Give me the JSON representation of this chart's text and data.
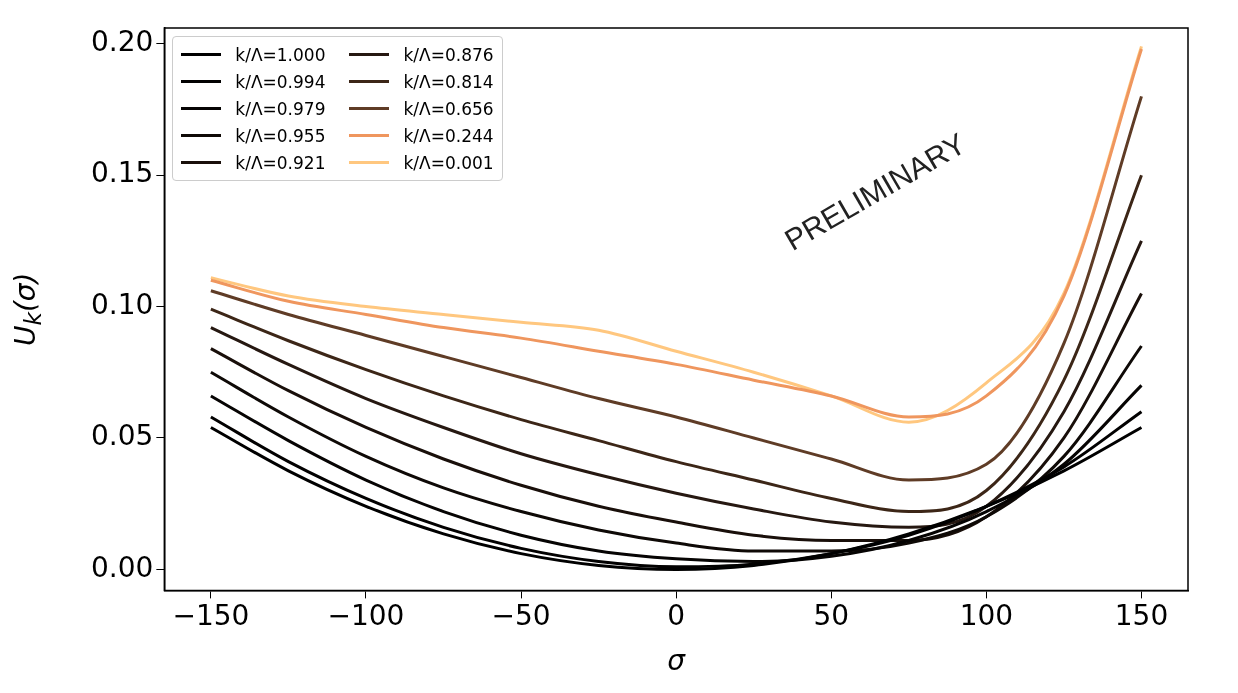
{
  "chart_data": {
    "type": "line",
    "xlabel": "σ",
    "ylabel": "U$_{k}$(σ)",
    "x": [
      -150,
      -125,
      -100,
      -75,
      -50,
      -25,
      0,
      25,
      50,
      75,
      100,
      125,
      150
    ],
    "xlim": [
      -165,
      165
    ],
    "xticks": [
      -150,
      -100,
      -50,
      0,
      50,
      100,
      150
    ],
    "ylim": [
      -0.008,
      0.206
    ],
    "yticks": [
      {
        "value": 0,
        "label": "0.00"
      },
      0.05,
      {
        "value": 0.1,
        "label": "0.10"
      },
      0.15,
      {
        "value": 0.2,
        "label": "0.20"
      }
    ],
    "grid": false,
    "legend": "top left",
    "marker": "none",
    "line_style": "solid",
    "annotations": [
      "PRELIMINARY"
    ],
    "series": [
      {
        "name": "k/Λ=1.000",
        "color": "#000000",
        "values": [
          0.054,
          0.0375,
          0.024,
          0.0135,
          0.006,
          0.0015,
          0,
          0.0015,
          0.006,
          0.0135,
          0.024,
          0.0375,
          0.054
        ]
      },
      {
        "name": "k/Λ=0.994",
        "color": "#020101",
        "values": [
          0.058,
          0.041,
          0.027,
          0.016,
          0.008,
          0.003,
          0.001,
          0.002,
          0.006,
          0.013,
          0.024,
          0.039,
          0.06
        ]
      },
      {
        "name": "k/Λ=0.979",
        "color": "#060403",
        "values": [
          0.066,
          0.049,
          0.034,
          0.022,
          0.013,
          0.007,
          0.004,
          0.003,
          0.005,
          0.011,
          0.022,
          0.04,
          0.07
        ]
      },
      {
        "name": "k/Λ=0.955",
        "color": "#0e0906",
        "values": [
          0.075,
          0.058,
          0.043,
          0.031,
          0.022,
          0.015,
          0.01,
          0.007,
          0.007,
          0.01,
          0.02,
          0.043,
          0.085
        ]
      },
      {
        "name": "k/Λ=0.921",
        "color": "#190f0a",
        "values": [
          0.084,
          0.068,
          0.054,
          0.042,
          0.032,
          0.024,
          0.018,
          0.013,
          0.011,
          0.011,
          0.02,
          0.05,
          0.105
        ]
      },
      {
        "name": "k/Λ=0.876",
        "color": "#261811",
        "values": [
          0.092,
          0.078,
          0.065,
          0.054,
          0.044,
          0.036,
          0.029,
          0.023,
          0.018,
          0.016,
          0.024,
          0.06,
          0.125
        ]
      },
      {
        "name": "k/Λ=0.814",
        "color": "#3c2617",
        "values": [
          0.099,
          0.087,
          0.076,
          0.066,
          0.057,
          0.049,
          0.041,
          0.034,
          0.027,
          0.022,
          0.03,
          0.072,
          0.15
        ]
      },
      {
        "name": "k/Λ=0.656",
        "color": "#5f3c26",
        "values": [
          0.106,
          0.097,
          0.089,
          0.081,
          0.073,
          0.065,
          0.058,
          0.05,
          0.042,
          0.034,
          0.04,
          0.086,
          0.18
        ]
      },
      {
        "name": "k/Λ=0.244",
        "color": "#ef965e",
        "values": [
          0.11,
          0.102,
          0.097,
          0.092,
          0.088,
          0.083,
          0.078,
          0.072,
          0.066,
          0.058,
          0.066,
          0.104,
          0.198
        ]
      },
      {
        "name": "k/Λ=0.001",
        "color": "#ffc77f",
        "values": [
          0.111,
          0.104,
          0.1,
          0.097,
          0.094,
          0.091,
          0.083,
          0.075,
          0.066,
          0.056,
          0.071,
          0.105,
          0.199
        ]
      }
    ]
  }
}
